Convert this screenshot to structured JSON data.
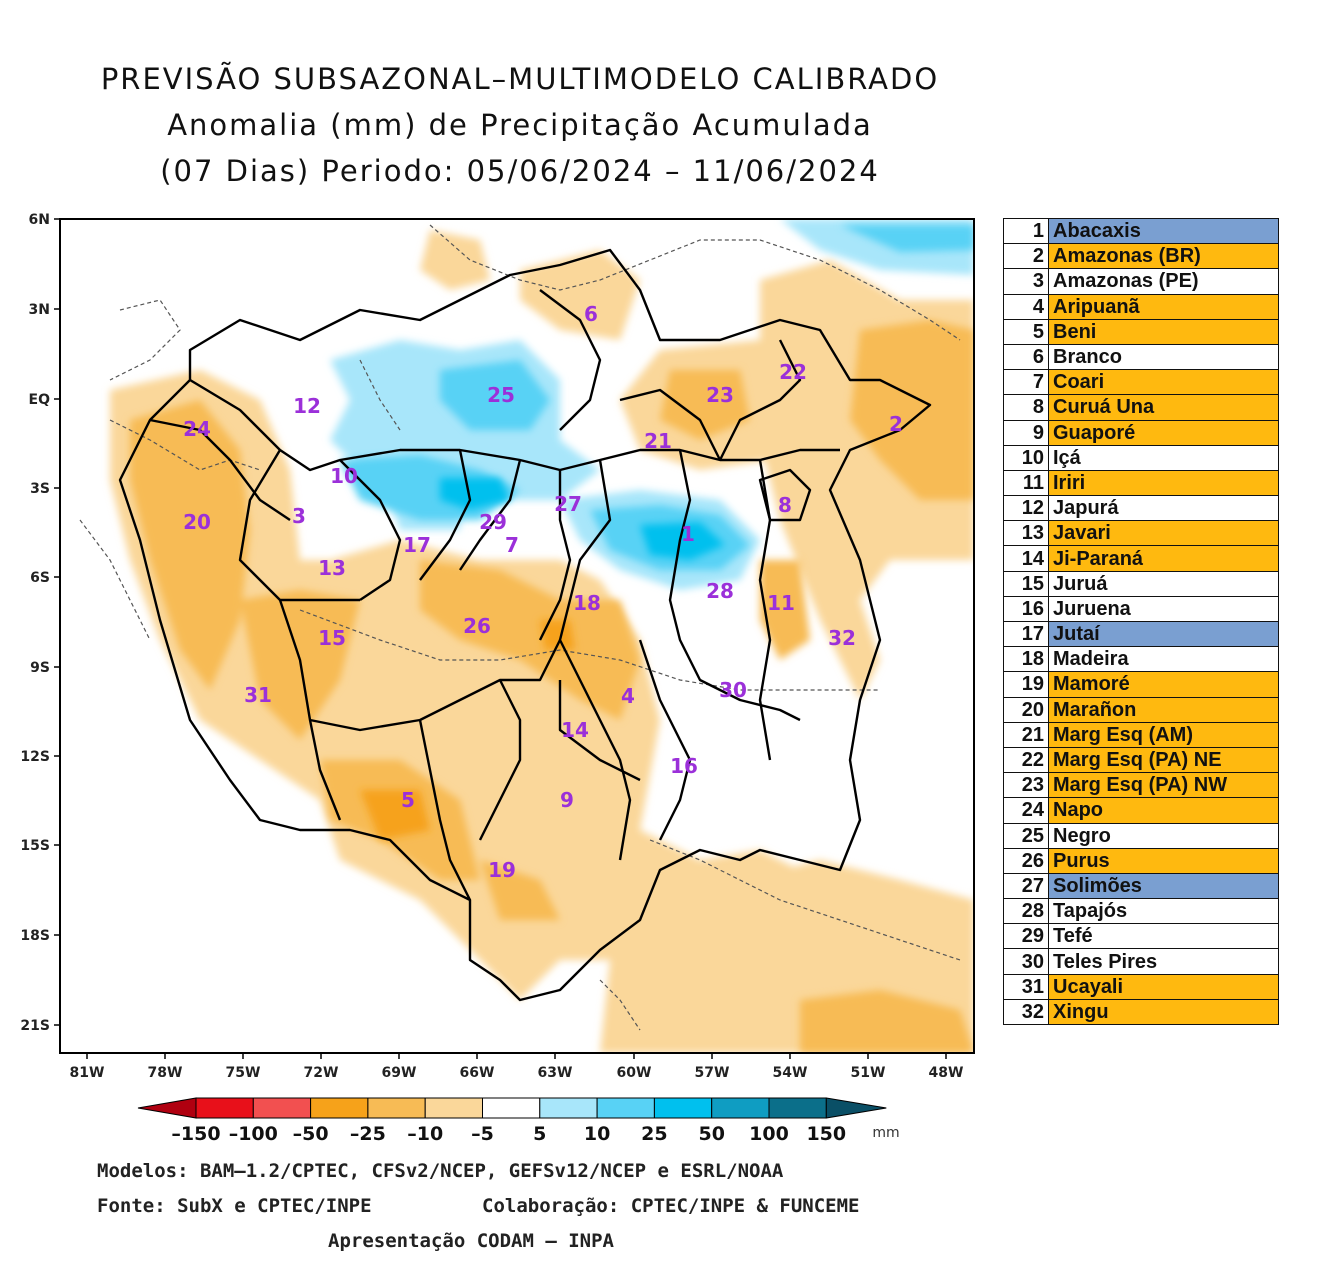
{
  "header": {
    "line1": "PREVISÃO SUBSAZONAL–MULTIMODELO CALIBRADO",
    "line2": "Anomalia (mm) de Precipitação Acumulada",
    "line3": "(07 Dias) Periodo: 05/06/2024 – 11/06/2024"
  },
  "map": {
    "lat_labels": [
      "6N",
      "3N",
      "EQ",
      "3S",
      "6S",
      "9S",
      "12S",
      "15S",
      "18S",
      "21S"
    ],
    "lon_labels": [
      "81W",
      "78W",
      "75W",
      "72W",
      "69W",
      "66W",
      "63W",
      "60W",
      "57W",
      "54W",
      "51W",
      "48W"
    ],
    "basin_labels": [
      "1",
      "2",
      "3",
      "4",
      "5",
      "6",
      "7",
      "8",
      "9",
      "10",
      "11",
      "12",
      "13",
      "14",
      "15",
      "16",
      "17",
      "18",
      "19",
      "20",
      "21",
      "22",
      "23",
      "24",
      "25",
      "26",
      "27",
      "28",
      "29",
      "30",
      "31",
      "32"
    ],
    "label_color": "#9b30d9"
  },
  "colorbar": {
    "ticks": [
      "–150",
      "–100",
      "–50",
      "–25",
      "–10",
      "–5",
      "5",
      "10",
      "25",
      "50",
      "100",
      "150"
    ],
    "unit": "mm",
    "colors": [
      "#b00010",
      "#e8101a",
      "#f25050",
      "#f6a21a",
      "#f7bb55",
      "#fad79a",
      "#ffffff",
      "#a8e6fa",
      "#58d2f5",
      "#00c0ee",
      "#0f9dc2",
      "#0b6f8a",
      "#0a4f66"
    ]
  },
  "basins": [
    {
      "num": "1",
      "name": "Abacaxis",
      "color": "#7a9fd1"
    },
    {
      "num": "2",
      "name": "Amazonas (BR)",
      "color": "#ffb90f"
    },
    {
      "num": "3",
      "name": "Amazonas (PE)",
      "color": "#ffffff"
    },
    {
      "num": "4",
      "name": "Aripuanã",
      "color": "#ffb90f"
    },
    {
      "num": "5",
      "name": "Beni",
      "color": "#ffb90f"
    },
    {
      "num": "6",
      "name": "Branco",
      "color": "#ffffff"
    },
    {
      "num": "7",
      "name": "Coari",
      "color": "#ffb90f"
    },
    {
      "num": "8",
      "name": "Curuá Una",
      "color": "#ffb90f"
    },
    {
      "num": "9",
      "name": "Guaporé",
      "color": "#ffb90f"
    },
    {
      "num": "10",
      "name": "Içá",
      "color": "#ffffff"
    },
    {
      "num": "11",
      "name": "Iriri",
      "color": "#ffb90f"
    },
    {
      "num": "12",
      "name": "Japurá",
      "color": "#ffffff"
    },
    {
      "num": "13",
      "name": "Javari",
      "color": "#ffb90f"
    },
    {
      "num": "14",
      "name": "Ji-Paraná",
      "color": "#ffb90f"
    },
    {
      "num": "15",
      "name": "Juruá",
      "color": "#ffffff"
    },
    {
      "num": "16",
      "name": "Juruena",
      "color": "#ffffff"
    },
    {
      "num": "17",
      "name": "Jutaí",
      "color": "#7a9fd1"
    },
    {
      "num": "18",
      "name": "Madeira",
      "color": "#ffffff"
    },
    {
      "num": "19",
      "name": "Mamoré",
      "color": "#ffb90f"
    },
    {
      "num": "20",
      "name": "Marañon",
      "color": "#ffb90f"
    },
    {
      "num": "21",
      "name": "Marg Esq (AM)",
      "color": "#ffb90f"
    },
    {
      "num": "22",
      "name": "Marg Esq (PA) NE",
      "color": "#ffb90f"
    },
    {
      "num": "23",
      "name": "Marg Esq (PA) NW",
      "color": "#ffb90f"
    },
    {
      "num": "24",
      "name": "Napo",
      "color": "#ffb90f"
    },
    {
      "num": "25",
      "name": "Negro",
      "color": "#ffffff"
    },
    {
      "num": "26",
      "name": "Purus",
      "color": "#ffb90f"
    },
    {
      "num": "27",
      "name": "Solimões",
      "color": "#7a9fd1"
    },
    {
      "num": "28",
      "name": "Tapajós",
      "color": "#ffffff"
    },
    {
      "num": "29",
      "name": "Tefé",
      "color": "#ffffff"
    },
    {
      "num": "30",
      "name": "Teles Pires",
      "color": "#ffffff"
    },
    {
      "num": "31",
      "name": "Ucayali",
      "color": "#ffb90f"
    },
    {
      "num": "32",
      "name": "Xingu",
      "color": "#ffb90f"
    }
  ],
  "footer": {
    "models": "Modelos: BAM–1.2/CPTEC, CFSv2/NCEP, GEFSv12/NCEP e ESRL/NOAA",
    "source": "Fonte: SubX e CPTEC/INPE",
    "collab": "Colaboração: CPTEC/INPE & FUNCEME",
    "presentation": "Apresentação CODAM – INPA"
  }
}
